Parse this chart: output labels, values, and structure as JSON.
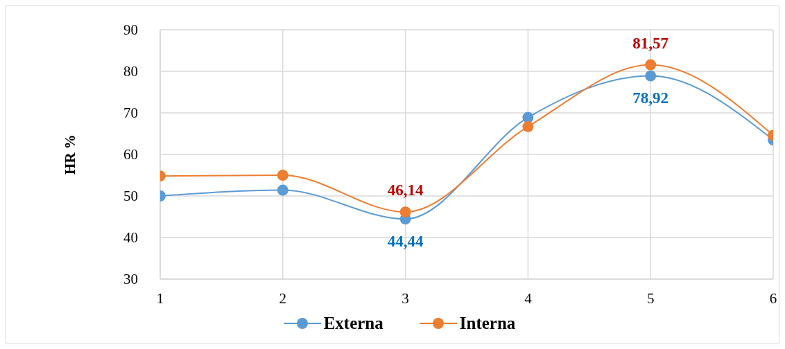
{
  "chart_data": {
    "type": "line",
    "ylabel": "HR %",
    "x": [
      1,
      2,
      3,
      4,
      5,
      6
    ],
    "series": [
      {
        "name": "Externa",
        "color": "#5b9bd5",
        "values": [
          50.0,
          51.4,
          44.44,
          68.9,
          78.92,
          63.5
        ],
        "value_labels": [
          null,
          null,
          "44,44",
          null,
          "78,92",
          null
        ]
      },
      {
        "name": "Interna",
        "color": "#ed7d31",
        "values": [
          54.8,
          55.0,
          46.14,
          66.7,
          81.57,
          64.6
        ],
        "value_labels": [
          null,
          null,
          "46,14",
          null,
          "81,57",
          null
        ]
      }
    ],
    "xlim": [
      1,
      6
    ],
    "xticks": [
      1,
      2,
      3,
      4,
      5,
      6
    ],
    "ylim": [
      30,
      90
    ],
    "yticks": [
      30,
      40,
      50,
      60,
      70,
      80,
      90
    ],
    "grid": true,
    "legend": "bottom",
    "marker": "circle"
  }
}
